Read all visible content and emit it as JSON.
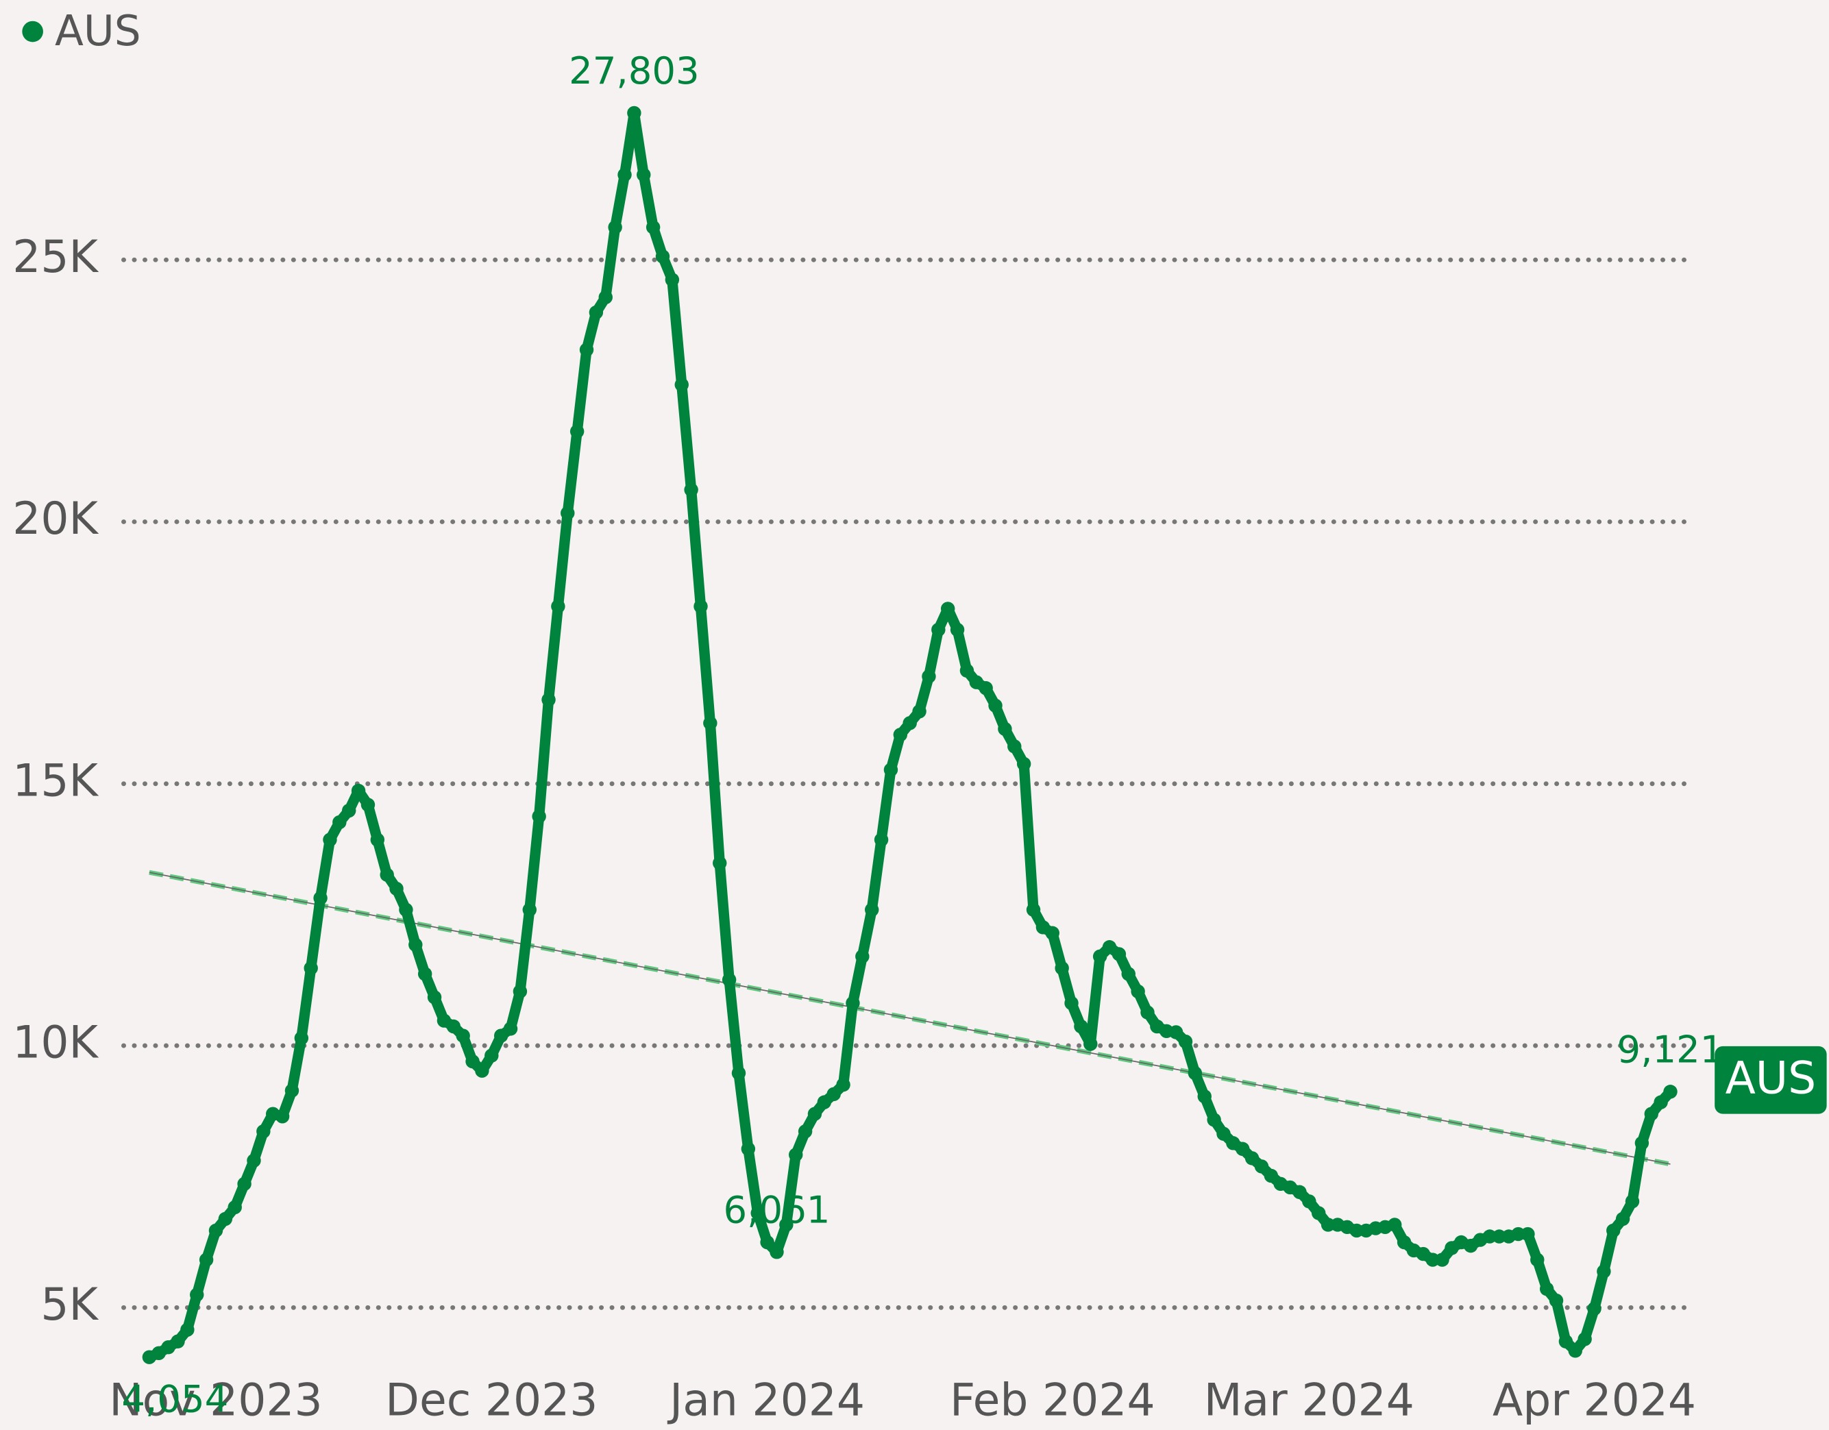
{
  "chart_data": {
    "type": "line",
    "legend": "top-left",
    "grid": true,
    "series": [
      {
        "name": "AUS",
        "color": "#00843d",
        "values": [
          4054,
          4131,
          4243,
          4354,
          4577,
          5245,
          5913,
          6470,
          6693,
          6915,
          7361,
          7806,
          8363,
          8697,
          8650,
          9142,
          10144,
          11480,
          12817,
          13930,
          14264,
          14487,
          14866,
          14598,
          13930,
          13262,
          12995,
          12594,
          11926,
          11369,
          10924,
          10478,
          10367,
          10189,
          9699,
          9521,
          9810,
          10189,
          10323,
          11035,
          12594,
          14376,
          16603,
          18385,
          20166,
          21725,
          23284,
          23997,
          24286,
          25622,
          26624,
          27803,
          26624,
          25622,
          25065,
          24620,
          22616,
          20611,
          18385,
          16157,
          13485,
          11258,
          9476,
          8029,
          6804,
          6247,
          6061,
          6581,
          7917,
          8363,
          8697,
          8920,
          9075,
          9254,
          10812,
          11703,
          12594,
          13930,
          15266,
          15935,
          16157,
          16380,
          17048,
          17939,
          18340,
          17939,
          17159,
          16937,
          16825,
          16491,
          16046,
          15712,
          15378,
          12594,
          12260,
          12149,
          11480,
          10812,
          10367,
          10033,
          11703,
          11881,
          11748,
          11369,
          11035,
          10634,
          10367,
          10278,
          10256,
          10078,
          9476,
          9031,
          8585,
          8318,
          8140,
          8029,
          7851,
          7695,
          7517,
          7361,
          7294,
          7205,
          7027,
          6804,
          6581,
          6581,
          6537,
          6470,
          6470,
          6514,
          6537,
          6581,
          6247,
          6091,
          6024,
          5913,
          5913,
          6136,
          6247,
          6180,
          6292,
          6358,
          6358,
          6358,
          6403,
          6403,
          5913,
          5356,
          5134,
          4354,
          4176,
          4399,
          4978,
          5690,
          6470,
          6693,
          7027,
          8140,
          8697,
          8920,
          9121
        ],
        "value_labels": {
          "0": "4,054",
          "51": "27,803",
          "66": "6,061",
          "160": "9,121"
        },
        "trendline": {
          "color": "#5fc97f",
          "values": [
            13307,
            7739
          ]
        }
      }
    ],
    "xlim": [
      0,
      160
    ],
    "xticks": [
      {
        "value": 7,
        "label": "Nov 2023"
      },
      {
        "value": 36,
        "label": "Dec 2023"
      },
      {
        "value": 65,
        "label": "Jan 2024"
      },
      {
        "value": 95,
        "label": "Feb 2024"
      },
      {
        "value": 122,
        "label": "Mar 2024"
      },
      {
        "value": 152,
        "label": "Apr 2024"
      }
    ],
    "ylim": [
      4000,
      28000
    ],
    "yticks": [
      {
        "value": 5000,
        "label": "5K"
      },
      {
        "value": 10000,
        "label": "10K"
      },
      {
        "value": 15000,
        "label": "15K"
      },
      {
        "value": 20000,
        "label": "20K"
      },
      {
        "value": 25000,
        "label": "25K"
      }
    ]
  }
}
